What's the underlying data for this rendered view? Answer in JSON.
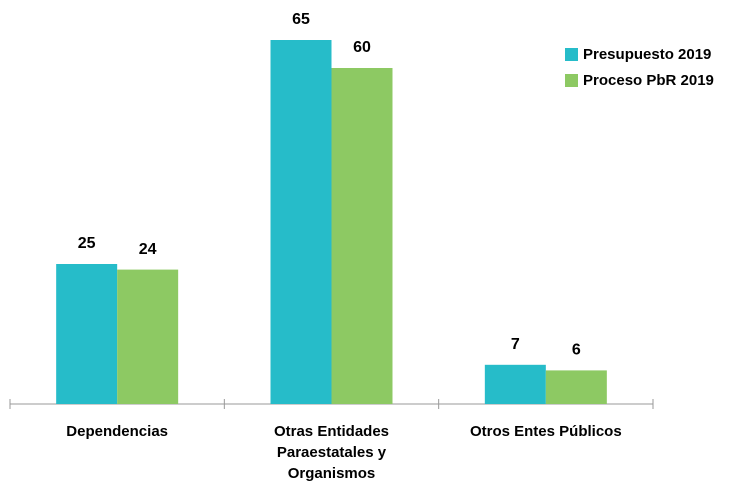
{
  "chart_data": {
    "type": "bar",
    "categories": [
      "Dependencias",
      "Otras Entidades Paraestatales y Organismos",
      "Otros Entes Públicos"
    ],
    "series": [
      {
        "name": "Presupuesto 2019",
        "color": "#26bcc9",
        "values": [
          25,
          65,
          7
        ]
      },
      {
        "name": "Proceso PbR 2019",
        "color": "#8dc963",
        "values": [
          24,
          60,
          6
        ]
      }
    ],
    "legend": "top-right"
  }
}
